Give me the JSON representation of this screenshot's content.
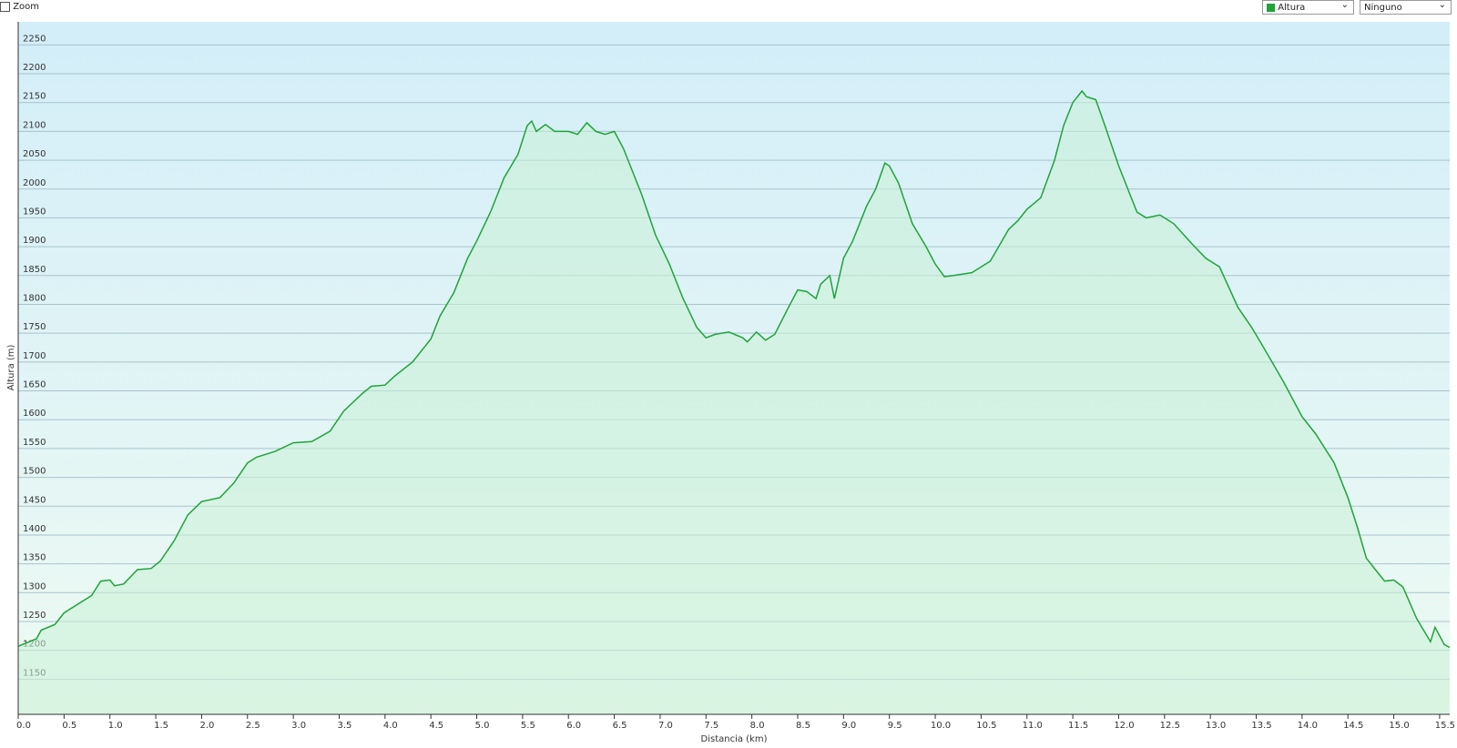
{
  "controls": {
    "zoom": "Zoom",
    "metric": "Altura",
    "secondary": "Ninguno"
  },
  "chart_data": {
    "type": "line",
    "y_label": "Altura (m)",
    "x_label": "Distancia  (km)",
    "color": "#1fa33a",
    "fill": "#c8f0d6",
    "x": [
      0.0,
      0.2,
      0.25,
      0.4,
      0.5,
      0.7,
      0.8,
      0.9,
      1.0,
      1.05,
      1.15,
      1.3,
      1.45,
      1.55,
      1.7,
      1.85,
      2.0,
      2.2,
      2.35,
      2.5,
      2.6,
      2.8,
      3.0,
      3.2,
      3.4,
      3.55,
      3.75,
      3.85,
      4.0,
      4.1,
      4.3,
      4.5,
      4.6,
      4.75,
      4.9,
      5.0,
      5.15,
      5.3,
      5.45,
      5.55,
      5.6,
      5.65,
      5.75,
      5.85,
      6.0,
      6.1,
      6.2,
      6.3,
      6.4,
      6.5,
      6.6,
      6.8,
      6.95,
      7.1,
      7.25,
      7.4,
      7.5,
      7.6,
      7.75,
      7.9,
      7.95,
      8.05,
      8.15,
      8.25,
      8.4,
      8.5,
      8.6,
      8.7,
      8.75,
      8.85,
      8.9,
      9.0,
      9.1,
      9.25,
      9.35,
      9.45,
      9.5,
      9.6,
      9.75,
      9.9,
      10.0,
      10.1,
      10.2,
      10.4,
      10.6,
      10.8,
      10.9,
      11.0,
      11.15,
      11.3,
      11.4,
      11.5,
      11.6,
      11.65,
      11.75,
      11.85,
      12.0,
      12.2,
      12.3,
      12.45,
      12.6,
      12.8,
      12.95,
      13.1,
      13.3,
      13.45,
      13.6,
      13.8,
      14.0,
      14.15,
      14.35,
      14.5,
      14.6,
      14.7,
      14.8,
      14.9,
      15.0,
      15.1,
      15.25,
      15.4,
      15.45,
      15.55,
      15.61
    ],
    "values": [
      1207,
      1220,
      1235,
      1245,
      1265,
      1285,
      1295,
      1320,
      1322,
      1312,
      1315,
      1340,
      1342,
      1355,
      1390,
      1435,
      1458,
      1465,
      1490,
      1525,
      1535,
      1545,
      1560,
      1562,
      1580,
      1615,
      1645,
      1658,
      1660,
      1675,
      1700,
      1740,
      1780,
      1820,
      1880,
      1910,
      1960,
      2020,
      2060,
      2110,
      2118,
      2100,
      2112,
      2100,
      2100,
      2095,
      2115,
      2100,
      2095,
      2100,
      2070,
      1990,
      1920,
      1870,
      1810,
      1760,
      1742,
      1748,
      1752,
      1742,
      1735,
      1752,
      1738,
      1748,
      1795,
      1825,
      1822,
      1810,
      1835,
      1850,
      1810,
      1880,
      1910,
      1970,
      2000,
      2045,
      2040,
      2010,
      1940,
      1900,
      1870,
      1848,
      1850,
      1855,
      1875,
      1930,
      1945,
      1965,
      1985,
      2050,
      2110,
      2150,
      2170,
      2160,
      2155,
      2110,
      2040,
      1960,
      1950,
      1955,
      1940,
      1905,
      1880,
      1865,
      1795,
      1760,
      1720,
      1665,
      1605,
      1575,
      1525,
      1465,
      1415,
      1360,
      1340,
      1320,
      1322,
      1310,
      1255,
      1215,
      1240,
      1210,
      1205
    ],
    "xlim": [
      0,
      15.61
    ],
    "ylim": [
      1089,
      2290
    ],
    "yticks": [
      1150,
      1200,
      1250,
      1300,
      1350,
      1400,
      1450,
      1500,
      1550,
      1600,
      1650,
      1700,
      1750,
      1800,
      1850,
      1900,
      1950,
      2000,
      2050,
      2100,
      2150,
      2200,
      2250
    ],
    "xticks": [
      {
        "value": 0,
        "label": "0.0"
      },
      0.5,
      {
        "value": 1,
        "label": "1.0"
      },
      1.5,
      {
        "value": 2,
        "label": "2.0"
      },
      2.5,
      {
        "value": 3,
        "label": "3.0"
      },
      3.5,
      {
        "value": 4,
        "label": "4.0"
      },
      4.5,
      {
        "value": 5,
        "label": "5.0"
      },
      5.5,
      {
        "value": 6,
        "label": "6.0"
      },
      6.5,
      {
        "value": 7,
        "label": "7.0"
      },
      7.5,
      {
        "value": 8,
        "label": "8.0"
      },
      8.5,
      {
        "value": 9,
        "label": "9.0"
      },
      9.5,
      {
        "value": 10,
        "label": "10.0"
      },
      10.5,
      {
        "value": 11,
        "label": "11.0"
      },
      11.5,
      {
        "value": 12,
        "label": "12.0"
      },
      12.5,
      {
        "value": 13,
        "label": "13.0"
      },
      13.5,
      {
        "value": 14,
        "label": "14.0"
      },
      14.5,
      {
        "value": 15,
        "label": "15.0"
      },
      15.5
    ],
    "grid": true
  }
}
